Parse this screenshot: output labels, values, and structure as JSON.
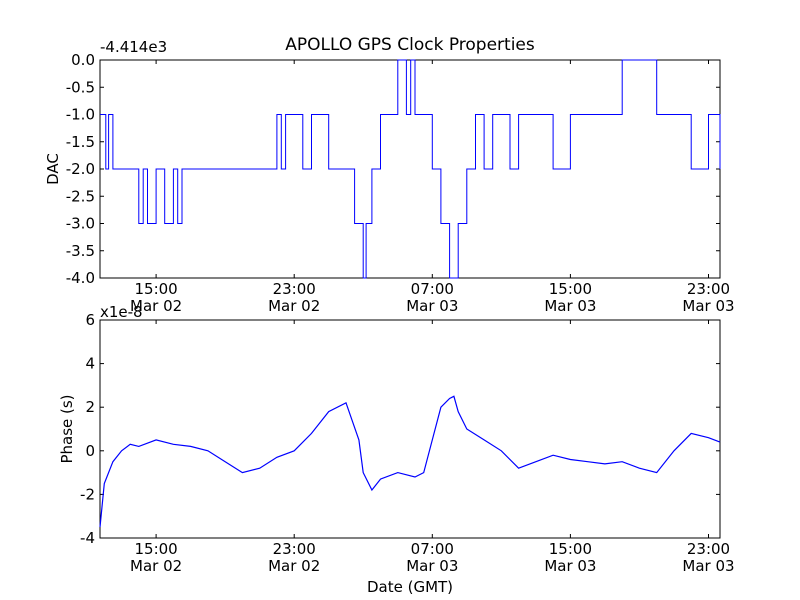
{
  "figure": {
    "title": "APOLLO GPS Clock Properties",
    "xlabel": "Date (GMT)"
  },
  "chart_data": [
    {
      "type": "line",
      "ylabel": "DAC",
      "offset_label": "-4.414e3",
      "ylim": [
        -4.0,
        0.0
      ],
      "yticks": [
        0.0,
        -0.5,
        -1.0,
        -1.5,
        -2.0,
        -2.5,
        -3.0,
        -3.5,
        -4.0
      ],
      "ytick_labels": [
        "0.0",
        "-0.5",
        "-1.0",
        "-1.5",
        "-2.0",
        "-2.5",
        "-3.0",
        "-3.5",
        "-4.0"
      ],
      "xlim": [
        "2013-03-02 11:45",
        "2013-03-03 23:40"
      ],
      "xticks": [
        "2013-03-02 15:00",
        "2013-03-02 23:00",
        "2013-03-03 07:00",
        "2013-03-03 15:00",
        "2013-03-03 23:00"
      ],
      "xtick_labels": [
        [
          "15:00",
          "Mar 02"
        ],
        [
          "23:00",
          "Mar 02"
        ],
        [
          "07:00",
          "Mar 03"
        ],
        [
          "15:00",
          "Mar 03"
        ],
        [
          "23:00",
          "Mar 03"
        ]
      ],
      "color": "#0000ff",
      "series": [
        {
          "x": [
            "2013-03-02 11:45",
            "2013-03-02 12:05",
            "2013-03-02 12:15",
            "2013-03-02 12:30",
            "2013-03-02 12:45",
            "2013-03-02 14:00",
            "2013-03-02 14:15",
            "2013-03-02 14:30",
            "2013-03-02 15:00",
            "2013-03-02 15:30",
            "2013-03-02 16:00",
            "2013-03-02 16:15",
            "2013-03-02 16:30",
            "2013-03-02 17:00",
            "2013-03-02 17:30",
            "2013-03-02 18:00",
            "2013-03-02 22:00",
            "2013-03-02 22:15",
            "2013-03-02 22:30",
            "2013-03-02 23:00",
            "2013-03-02 23:30",
            "2013-03-03 00:00",
            "2013-03-03 01:00",
            "2013-03-03 02:00",
            "2013-03-03 02:30",
            "2013-03-03 03:00",
            "2013-03-03 03:10",
            "2013-03-03 03:30",
            "2013-03-03 04:00",
            "2013-03-03 05:00",
            "2013-03-03 05:30",
            "2013-03-03 05:45",
            "2013-03-03 06:00",
            "2013-03-03 06:30",
            "2013-03-03 07:00",
            "2013-03-03 07:30",
            "2013-03-03 08:00",
            "2013-03-03 08:30",
            "2013-03-03 08:45",
            "2013-03-03 09:00",
            "2013-03-03 09:30",
            "2013-03-03 10:00",
            "2013-03-03 10:30",
            "2013-03-03 11:00",
            "2013-03-03 11:30",
            "2013-03-03 12:00",
            "2013-03-03 13:00",
            "2013-03-03 14:00",
            "2013-03-03 15:00",
            "2013-03-03 16:00",
            "2013-03-03 17:00",
            "2013-03-03 18:00",
            "2013-03-03 19:00",
            "2013-03-03 20:00",
            "2013-03-03 21:00",
            "2013-03-03 22:00",
            "2013-03-03 23:00",
            "2013-03-03 23:40"
          ],
          "y": [
            -1.0,
            -2.0,
            -1.0,
            -2.0,
            -2.0,
            -3.0,
            -2.0,
            -3.0,
            -2.0,
            -3.0,
            -2.0,
            -3.0,
            -2.0,
            -2.0,
            -2.0,
            -2.0,
            -1.0,
            -2.0,
            -1.0,
            -1.0,
            -2.0,
            -1.0,
            -2.0,
            -2.0,
            -3.0,
            -4.0,
            -3.0,
            -2.0,
            -1.0,
            0.0,
            -1.0,
            0.0,
            -1.0,
            -1.0,
            -2.0,
            -3.0,
            -4.0,
            -3.0,
            -3.0,
            -2.0,
            -1.0,
            -2.0,
            -1.0,
            -1.0,
            -2.0,
            -1.0,
            -1.0,
            -2.0,
            -1.0,
            -1.0,
            -1.0,
            0.0,
            0.0,
            -1.0,
            -1.0,
            -2.0,
            -1.0,
            -2.0
          ]
        }
      ]
    },
    {
      "type": "line",
      "ylabel": "Phase (s)",
      "offset_label": "x1e-8",
      "ylim": [
        -4,
        6
      ],
      "yticks": [
        -4,
        -2,
        0,
        2,
        4,
        6
      ],
      "ytick_labels": [
        "-4",
        "-2",
        "0",
        "2",
        "4",
        "6"
      ],
      "xlim": [
        "2013-03-02 11:45",
        "2013-03-03 23:40"
      ],
      "xticks": [
        "2013-03-02 15:00",
        "2013-03-02 23:00",
        "2013-03-03 07:00",
        "2013-03-03 15:00",
        "2013-03-03 23:00"
      ],
      "xtick_labels": [
        [
          "15:00",
          "Mar 02"
        ],
        [
          "23:00",
          "Mar 02"
        ],
        [
          "07:00",
          "Mar 03"
        ],
        [
          "15:00",
          "Mar 03"
        ],
        [
          "23:00",
          "Mar 03"
        ]
      ],
      "color": "#0000ff",
      "series": [
        {
          "x": [
            "2013-03-02 11:45",
            "2013-03-02 12:00",
            "2013-03-02 12:30",
            "2013-03-02 13:00",
            "2013-03-02 13:30",
            "2013-03-02 14:00",
            "2013-03-02 15:00",
            "2013-03-02 16:00",
            "2013-03-02 17:00",
            "2013-03-02 18:00",
            "2013-03-02 19:00",
            "2013-03-02 20:00",
            "2013-03-02 21:00",
            "2013-03-02 22:00",
            "2013-03-02 23:00",
            "2013-03-03 00:00",
            "2013-03-03 01:00",
            "2013-03-03 02:00",
            "2013-03-03 02:45",
            "2013-03-03 03:00",
            "2013-03-03 03:30",
            "2013-03-03 04:00",
            "2013-03-03 05:00",
            "2013-03-03 06:00",
            "2013-03-03 06:30",
            "2013-03-03 07:00",
            "2013-03-03 07:30",
            "2013-03-03 08:00",
            "2013-03-03 08:15",
            "2013-03-03 08:30",
            "2013-03-03 09:00",
            "2013-03-03 10:00",
            "2013-03-03 11:00",
            "2013-03-03 12:00",
            "2013-03-03 13:00",
            "2013-03-03 14:00",
            "2013-03-03 15:00",
            "2013-03-03 16:00",
            "2013-03-03 17:00",
            "2013-03-03 18:00",
            "2013-03-03 19:00",
            "2013-03-03 20:00",
            "2013-03-03 21:00",
            "2013-03-03 22:00",
            "2013-03-03 23:00",
            "2013-03-03 23:40"
          ],
          "y": [
            -3.5,
            -1.5,
            -0.5,
            0.0,
            0.3,
            0.2,
            0.5,
            0.3,
            0.2,
            0.0,
            -0.5,
            -1.0,
            -0.8,
            -0.3,
            0.0,
            0.8,
            1.8,
            2.2,
            0.5,
            -1.0,
            -1.8,
            -1.3,
            -1.0,
            -1.2,
            -1.0,
            0.5,
            2.0,
            2.4,
            2.5,
            1.8,
            1.0,
            0.5,
            0.0,
            -0.8,
            -0.5,
            -0.2,
            -0.4,
            -0.5,
            -0.6,
            -0.5,
            -0.8,
            -1.0,
            0.0,
            0.8,
            0.6,
            0.4
          ]
        }
      ]
    }
  ]
}
